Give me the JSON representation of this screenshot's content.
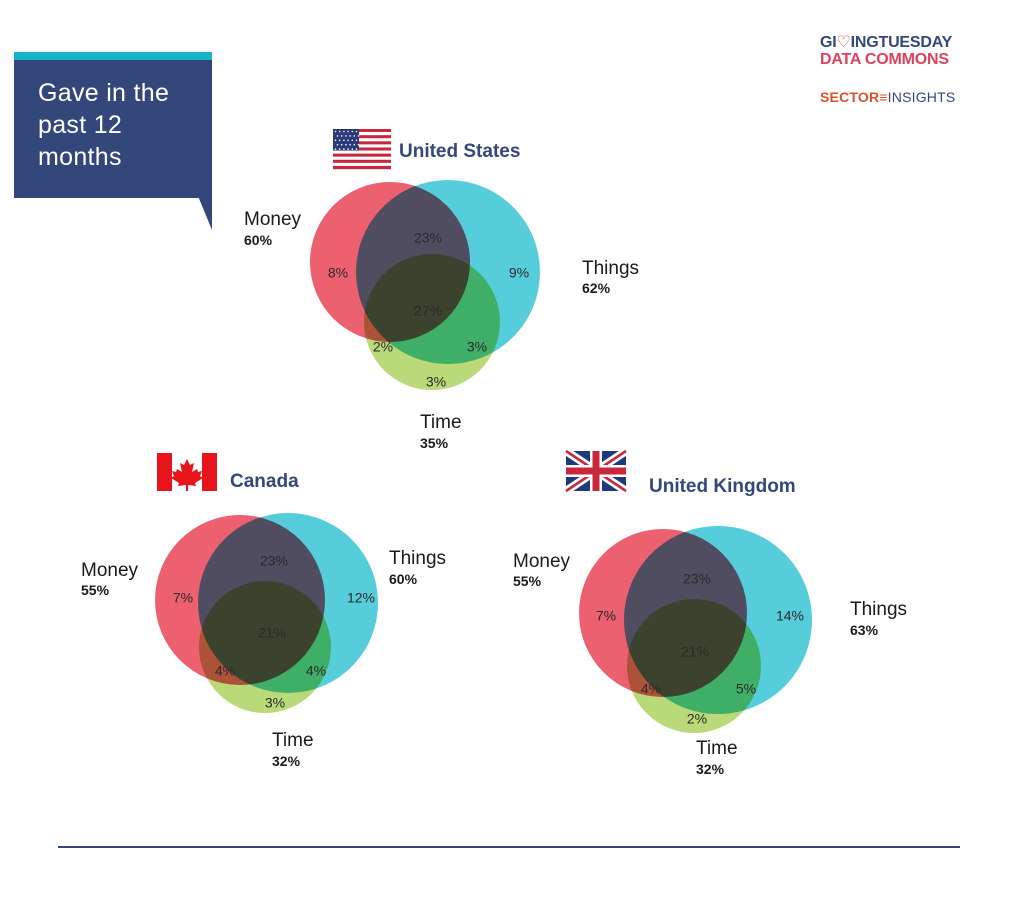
{
  "callout": {
    "text": "Gave in the past 12 months"
  },
  "logos": {
    "givingtuesday_line1_a": "GI",
    "givingtuesday_line1_b": "♡",
    "givingtuesday_line1_c": "INGTUESDAY",
    "givingtuesday_line2": "DATA COMMONS",
    "sector3_a": "SECTOR",
    "sector3_b": "≡",
    "sector3_c": "INSIGHTS"
  },
  "colors": {
    "money": "#e94457",
    "things": "#26bfd0",
    "time": "#a6d055",
    "country_title": "#33477a",
    "text": "#1a1a1a"
  },
  "chart_data": [
    {
      "type": "venn",
      "title": "United States",
      "flag": "us-flag",
      "sets": [
        {
          "name": "Money",
          "total": "60%"
        },
        {
          "name": "Things",
          "total": "62%"
        },
        {
          "name": "Time",
          "total": "35%"
        }
      ],
      "regions": {
        "money_only": "8%",
        "things_only": "9%",
        "time_only": "3%",
        "money_things": "23%",
        "money_time": "2%",
        "things_time": "3%",
        "all_three": "27%"
      }
    },
    {
      "type": "venn",
      "title": "Canada",
      "flag": "canada-flag",
      "sets": [
        {
          "name": "Money",
          "total": "55%"
        },
        {
          "name": "Things",
          "total": "60%"
        },
        {
          "name": "Time",
          "total": "32%"
        }
      ],
      "regions": {
        "money_only": "7%",
        "things_only": "12%",
        "time_only": "3%",
        "money_things": "23%",
        "money_time": "4%",
        "things_time": "4%",
        "all_three": "21%"
      }
    },
    {
      "type": "venn",
      "title": "United Kingdom",
      "flag": "uk-flag",
      "sets": [
        {
          "name": "Money",
          "total": "55%"
        },
        {
          "name": "Things",
          "total": "63%"
        },
        {
          "name": "Time",
          "total": "32%"
        }
      ],
      "regions": {
        "money_only": "7%",
        "things_only": "14%",
        "time_only": "2%",
        "money_things": "23%",
        "money_time": "4%",
        "things_time": "5%",
        "all_three": "21%"
      }
    }
  ]
}
